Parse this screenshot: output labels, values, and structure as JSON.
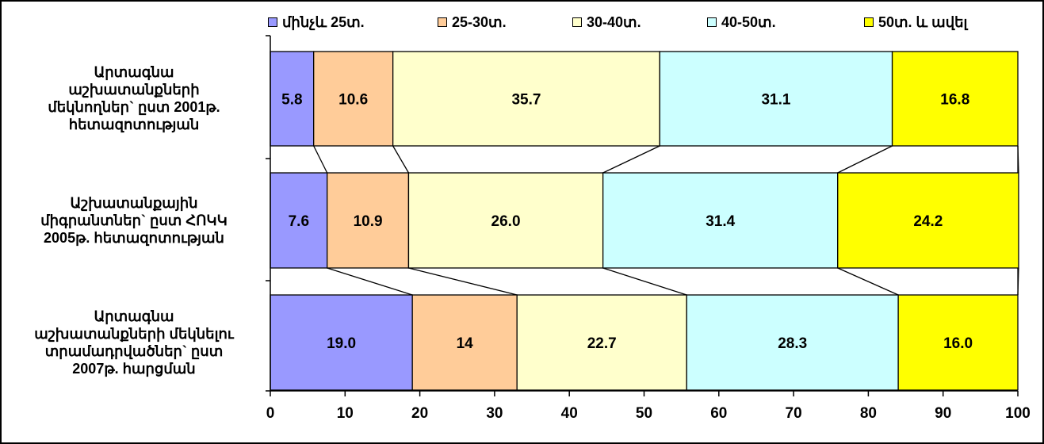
{
  "chart_data": {
    "type": "bar",
    "orientation": "horizontal",
    "stacked": true,
    "normalized_percent": true,
    "xlim": [
      0,
      100
    ],
    "x_ticks": [
      "0",
      "10",
      "20",
      "30",
      "40",
      "50",
      "60",
      "70",
      "80",
      "90",
      "100"
    ],
    "legend_position": "top",
    "categories": [
      "Արտագնա աշխատանքների մեկնողներ` ըստ 2001թ. հետազոտության",
      "Աշխատանքային միգրանտներ` ըստ ՀՈԿԿ 2005թ. հետազոտության",
      "Արտագնա աշխատանքների մեկնելու տրամադրվածներ` ըստ 2007թ. հարցման"
    ],
    "category_label_lines": [
      "Արտագնա\nաշխատանքների\nմեկնողներ` ըստ 2001թ.\nհետազոտության",
      "Աշխատանքային\nմիգրանտներ` ըստ ՀՈԿԿ\n2005թ. հետազոտության",
      "Արտագնա\nաշխատանքների մեկնելու\nտրամադրվածներ` ըստ\n2007թ. հարցման"
    ],
    "series": [
      {
        "name": "մինչև 25տ.",
        "color": "#9999ff",
        "values": [
          5.8,
          7.6,
          19.0
        ],
        "labels": [
          "5.8",
          "7.6",
          "19.0"
        ]
      },
      {
        "name": "25-30տ.",
        "color": "#ffcc99",
        "values": [
          10.6,
          10.9,
          14
        ],
        "labels": [
          "10.6",
          "10.9",
          "14"
        ]
      },
      {
        "name": "30-40տ.",
        "color": "#ffffcc",
        "values": [
          35.7,
          26.0,
          22.7
        ],
        "labels": [
          "35.7",
          "26.0",
          "22.7"
        ]
      },
      {
        "name": "40-50տ.",
        "color": "#ccffff",
        "values": [
          31.1,
          31.4,
          28.3
        ],
        "labels": [
          "31.1",
          "31.4",
          "28.3"
        ]
      },
      {
        "name": "50տ. և ավել",
        "color": "#ffff00",
        "values": [
          16.8,
          24.2,
          16.0
        ],
        "labels": [
          "16.8",
          "24.2",
          "16.0"
        ]
      }
    ],
    "series_lines": true,
    "grid": false
  }
}
